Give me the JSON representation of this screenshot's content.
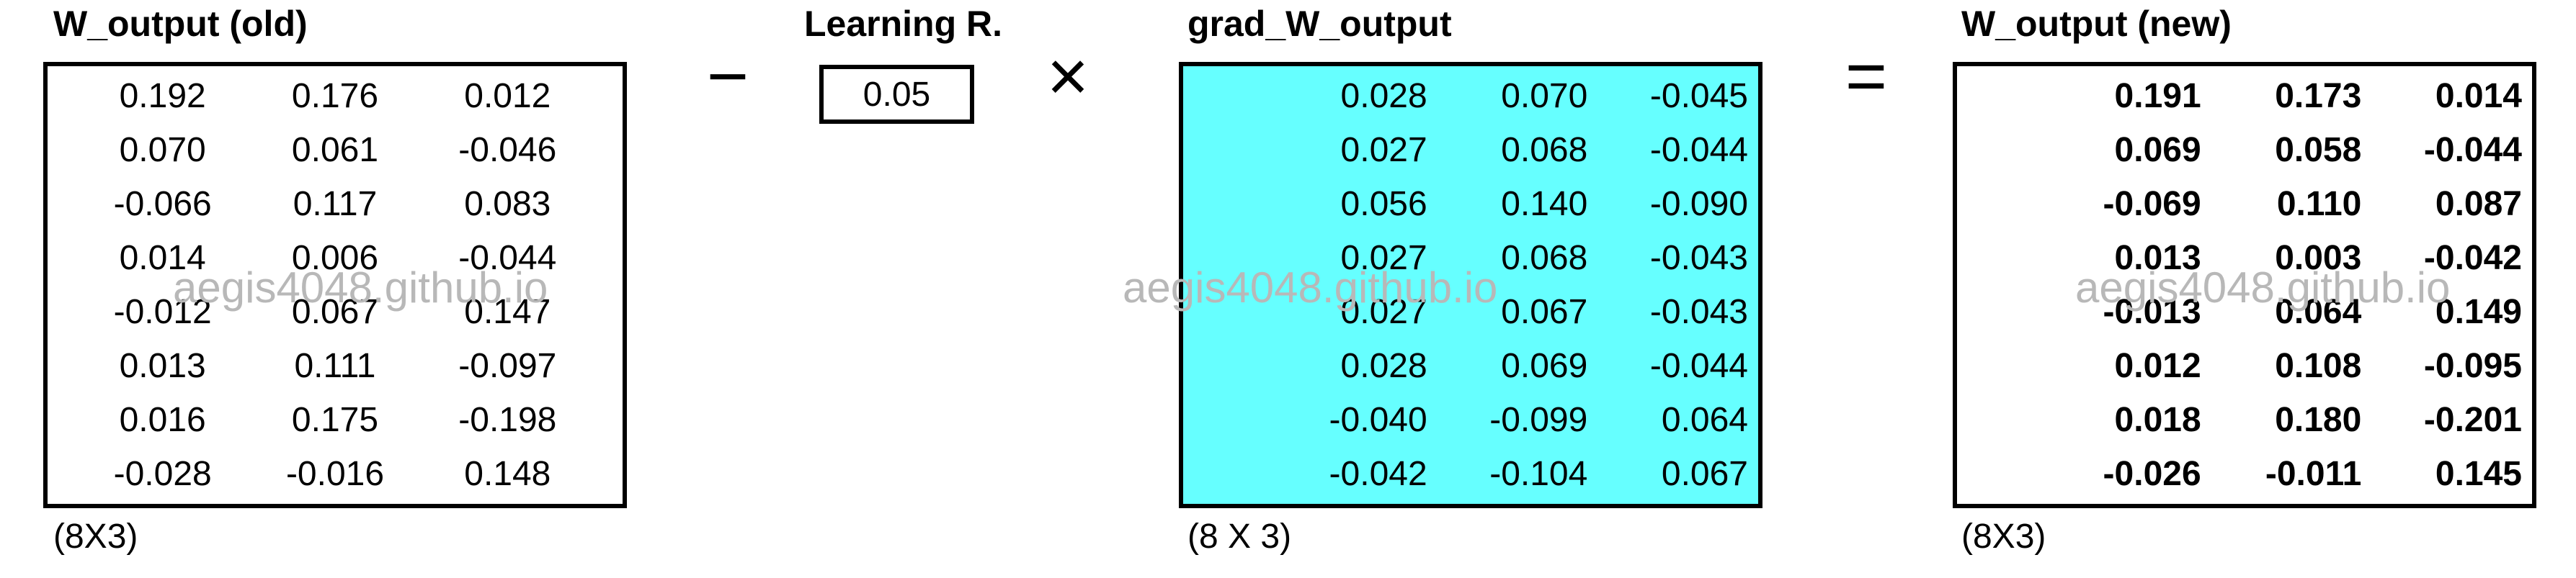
{
  "w_old": {
    "title": "W_output (old)",
    "dims": "(8X3)",
    "rows": [
      [
        "0.192",
        "0.176",
        "0.012"
      ],
      [
        "0.070",
        "0.061",
        "-0.046"
      ],
      [
        "-0.066",
        "0.117",
        "0.083"
      ],
      [
        "0.014",
        "0.006",
        "-0.044"
      ],
      [
        "-0.012",
        "0.067",
        "0.147"
      ],
      [
        "0.013",
        "0.111",
        "-0.097"
      ],
      [
        "0.016",
        "0.175",
        "-0.198"
      ],
      [
        "-0.028",
        "-0.016",
        "0.148"
      ]
    ]
  },
  "learning_rate": {
    "title": "Learning R.",
    "value": "0.05"
  },
  "grad": {
    "title": "grad_W_output",
    "dims": "(8 X 3)",
    "fill_color": "#66ffff",
    "rows": [
      [
        "0.028",
        "0.070",
        "-0.045"
      ],
      [
        "0.027",
        "0.068",
        "-0.044"
      ],
      [
        "0.056",
        "0.140",
        "-0.090"
      ],
      [
        "0.027",
        "0.068",
        "-0.043"
      ],
      [
        "0.027",
        "0.067",
        "-0.043"
      ],
      [
        "0.028",
        "0.069",
        "-0.044"
      ],
      [
        "-0.040",
        "-0.099",
        "0.064"
      ],
      [
        "-0.042",
        "-0.104",
        "0.067"
      ]
    ]
  },
  "w_new": {
    "title": "W_output (new)",
    "dims": "(8X3)",
    "rows": [
      [
        "0.191",
        "0.173",
        "0.014"
      ],
      [
        "0.069",
        "0.058",
        "-0.044"
      ],
      [
        "-0.069",
        "0.110",
        "0.087"
      ],
      [
        "0.013",
        "0.003",
        "-0.042"
      ],
      [
        "-0.013",
        "0.064",
        "0.149"
      ],
      [
        "0.012",
        "0.108",
        "-0.095"
      ],
      [
        "0.018",
        "0.180",
        "-0.201"
      ],
      [
        "-0.026",
        "-0.011",
        "0.145"
      ]
    ]
  },
  "operators": {
    "minus": "−",
    "times": "×",
    "equals": "="
  },
  "watermark": "aegis4048.github.io"
}
